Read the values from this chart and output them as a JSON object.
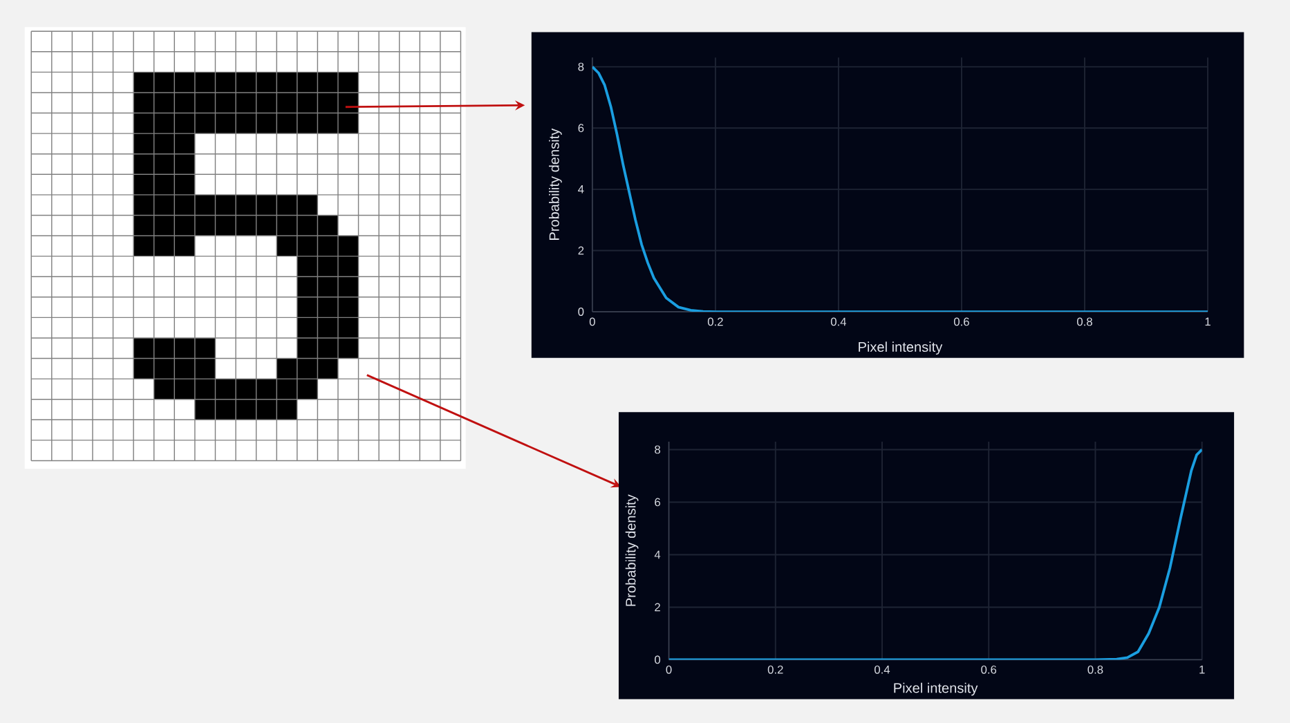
{
  "chart_data": [
    {
      "type": "line",
      "xlabel": "Pixel intensity",
      "ylabel": "Probability density",
      "x": [
        0,
        0.01,
        0.02,
        0.03,
        0.04,
        0.05,
        0.06,
        0.07,
        0.08,
        0.09,
        0.1,
        0.12,
        0.14,
        0.16,
        0.18,
        0.2,
        0.3,
        0.4,
        0.5,
        0.6,
        0.7,
        0.8,
        0.9,
        1
      ],
      "series": [
        {
          "color": "#1a9ee0",
          "values": [
            8,
            7.8,
            7.4,
            6.7,
            5.8,
            4.8,
            3.9,
            3.0,
            2.2,
            1.6,
            1.1,
            0.45,
            0.15,
            0.05,
            0.01,
            0,
            0,
            0,
            0,
            0,
            0,
            0,
            0,
            0
          ]
        }
      ],
      "xlim": [
        0,
        1
      ],
      "ylim": [
        0,
        8.3
      ],
      "xticks": [
        0,
        0.2,
        0.4,
        0.6,
        0.8,
        1
      ],
      "yticks": [
        0,
        2,
        4,
        6,
        8
      ],
      "grid": true
    },
    {
      "type": "line",
      "xlabel": "Pixel intensity",
      "ylabel": "Probability density",
      "x": [
        0,
        0.1,
        0.2,
        0.3,
        0.4,
        0.5,
        0.6,
        0.7,
        0.8,
        0.84,
        0.86,
        0.88,
        0.9,
        0.92,
        0.94,
        0.96,
        0.98,
        0.99,
        1
      ],
      "series": [
        {
          "color": "#1a9ee0",
          "values": [
            0,
            0,
            0,
            0,
            0,
            0,
            0,
            0,
            0,
            0.02,
            0.08,
            0.3,
            1.0,
            2.0,
            3.5,
            5.4,
            7.2,
            7.8,
            8
          ]
        }
      ],
      "xlim": [
        0,
        1
      ],
      "ylim": [
        0,
        8.3
      ],
      "xticks": [
        0,
        0.2,
        0.4,
        0.6,
        0.8,
        1
      ],
      "yticks": [
        0,
        2,
        4,
        6,
        8
      ],
      "grid": true
    }
  ]
}
